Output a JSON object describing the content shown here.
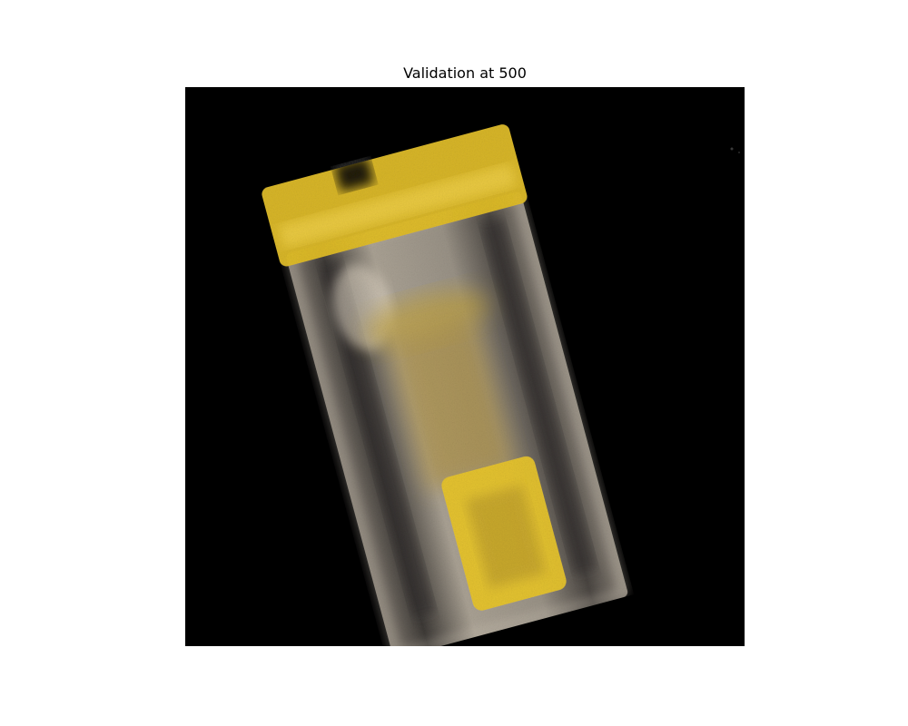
{
  "figure": {
    "title": "Validation at 500"
  },
  "image": {
    "subject": "rendered-volume",
    "colors": {
      "background": "#000000",
      "body": "#b9b1a4",
      "body_dark": "#4a4540",
      "accent": "#e9c62c",
      "accent_dark": "#a08a2a"
    }
  }
}
